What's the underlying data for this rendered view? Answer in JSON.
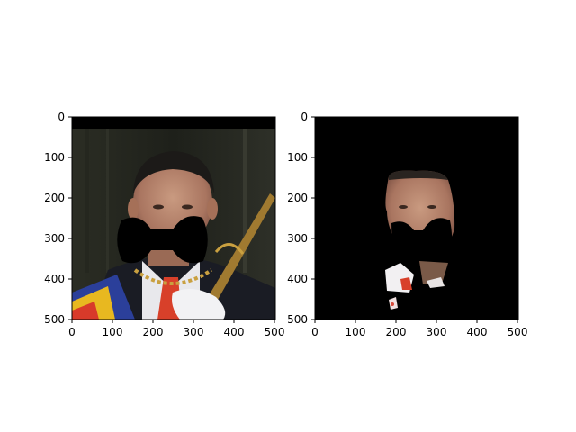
{
  "figure": {
    "background": "#ffffff",
    "panels": [
      {
        "name": "original-image-with-occlusion",
        "x_ticks": [
          "0",
          "100",
          "200",
          "300",
          "400",
          "500"
        ],
        "y_ticks": [
          "0",
          "100",
          "200",
          "300",
          "400",
          "500"
        ],
        "xlim": [
          0,
          500
        ],
        "ylim": [
          500,
          0
        ]
      },
      {
        "name": "segmentation-mask-output",
        "x_ticks": [
          "0",
          "100",
          "200",
          "300",
          "400",
          "500"
        ],
        "y_ticks": [
          "0",
          "100",
          "200",
          "300",
          "400",
          "500"
        ],
        "xlim": [
          0,
          500
        ],
        "ylim": [
          500,
          0
        ]
      }
    ]
  }
}
